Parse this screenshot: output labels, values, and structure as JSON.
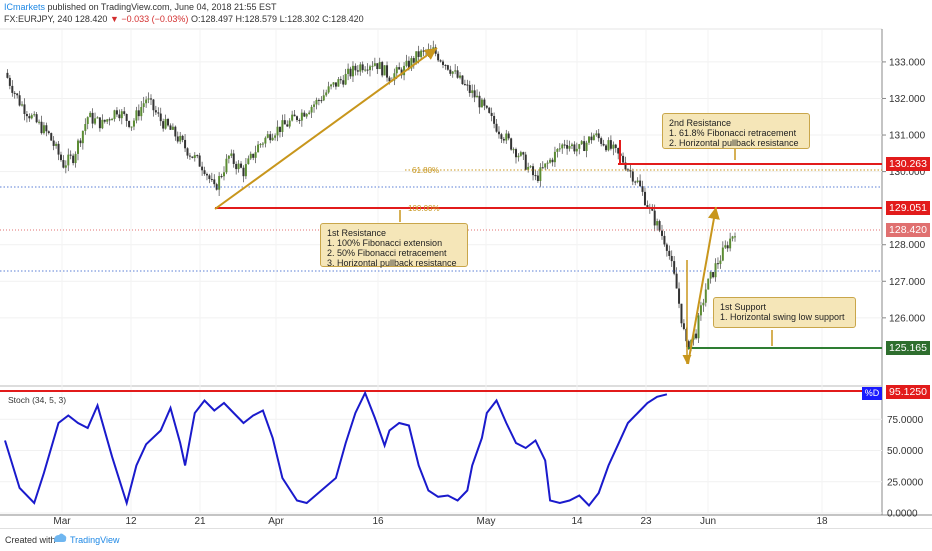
{
  "header": {
    "publisher": "ICmarkets",
    "published_text": "published on TradingView.com, June 04, 2018 21:55 EST",
    "symbol": "FX:EURJPY, 240",
    "change": "▼ −0.033 (−0.03%)",
    "ohlc_o": "O:128.497",
    "ohlc_h": "H:128.579",
    "ohlc_l": "L:128.302",
    "ohlc_c": "C:128.420"
  },
  "footer": {
    "created_with": "Created with",
    "brand": "TradingView"
  },
  "colors": {
    "up": "#26a69a",
    "down": "#ef5350",
    "candle_body": "#5b8c33",
    "resistance": "#e21b1b",
    "support": "#2e7d32",
    "arrow": "#c8961c",
    "stoch": "#1a1acc",
    "dotted_blue": "#5b7fd6"
  },
  "price_levels": {
    "r2": "130.263",
    "r1": "129.051",
    "current": "128.420",
    "s1": "125.165",
    "stoch_level": "95.1250",
    "stoch_pctd": "%D"
  },
  "fib_labels": {
    "fib618": "61.80%",
    "fib100": "100.00%"
  },
  "callouts": {
    "r2": [
      "2nd Resistance",
      "1. 61.8% Fibonacci retracement",
      "2. Horizontal pullback resistance"
    ],
    "r1": [
      "1st Resistance",
      "1. 100% Fibonacci extension",
      "2. 50% Fibonacci retracement",
      "3. Horizontal pullback resistance"
    ],
    "s1": [
      "1st Support",
      "1. Horizontal swing low support"
    ]
  },
  "stoch_label": "Stoch (34, 5, 3)",
  "chart_data": {
    "type": "candlestick",
    "symbol": "FX:EURJPY",
    "timeframe": "240",
    "price_axis": {
      "ylim": [
        124.3,
        133.9
      ],
      "ticks": [
        "133.000",
        "132.000",
        "131.000",
        "130.000",
        "128.000",
        "127.000",
        "126.000"
      ]
    },
    "stoch_axis": {
      "ylim": [
        0,
        100
      ],
      "ticks": [
        "75.0000",
        "50.0000",
        "25.0000",
        "0.0000"
      ]
    },
    "x_ticks": [
      "Mar",
      "12",
      "21",
      "Apr",
      "16",
      "May",
      "14",
      "23",
      "Jun",
      "18"
    ],
    "horizontal_levels": [
      {
        "name": "2nd Resistance",
        "value": 130.263
      },
      {
        "name": "1st Resistance",
        "value": 129.051
      },
      {
        "name": "1st Support",
        "value": 125.165
      },
      {
        "name": "current",
        "value": 128.42
      }
    ],
    "fib_levels": [
      {
        "label": "61.80%",
        "value": 130.1
      },
      {
        "label": "100.00%",
        "value": 129.051
      }
    ],
    "price_path": [
      [
        0,
        132.7
      ],
      [
        3,
        131.9
      ],
      [
        6,
        131.4
      ],
      [
        9,
        131.0
      ],
      [
        12,
        130.2
      ],
      [
        14,
        130.4
      ],
      [
        17,
        131.5
      ],
      [
        20,
        131.3
      ],
      [
        23,
        131.7
      ],
      [
        26,
        131.3
      ],
      [
        29,
        132.0
      ],
      [
        32,
        131.4
      ],
      [
        35,
        131.0
      ],
      [
        38,
        130.5
      ],
      [
        41,
        130.1
      ],
      [
        43,
        129.5
      ],
      [
        46,
        130.4
      ],
      [
        49,
        130.0
      ],
      [
        52,
        130.7
      ],
      [
        55,
        131.1
      ],
      [
        58,
        131.3
      ],
      [
        61,
        131.6
      ],
      [
        64,
        131.9
      ],
      [
        67,
        132.3
      ],
      [
        70,
        132.6
      ],
      [
        73,
        132.9
      ],
      [
        76,
        133.0
      ],
      [
        79,
        132.6
      ],
      [
        82,
        132.8
      ],
      [
        85,
        133.2
      ],
      [
        88,
        133.3
      ],
      [
        91,
        132.9
      ],
      [
        94,
        132.4
      ],
      [
        97,
        132.0
      ],
      [
        100,
        131.4
      ],
      [
        103,
        130.9
      ],
      [
        106,
        130.4
      ],
      [
        109,
        129.8
      ],
      [
        112,
        130.3
      ],
      [
        115,
        130.8
      ],
      [
        118,
        130.6
      ],
      [
        121,
        131.0
      ],
      [
        124,
        130.7
      ],
      [
        127,
        130.3
      ],
      [
        130,
        129.7
      ],
      [
        133,
        128.8
      ],
      [
        136,
        128.0
      ],
      [
        138,
        126.8
      ],
      [
        140,
        125.2
      ],
      [
        142,
        125.6
      ],
      [
        144,
        126.8
      ],
      [
        146,
        127.4
      ],
      [
        148,
        127.9
      ],
      [
        150,
        128.4
      ]
    ],
    "stoch": [
      [
        0,
        58
      ],
      [
        3,
        20
      ],
      [
        6,
        8
      ],
      [
        8,
        32
      ],
      [
        11,
        72
      ],
      [
        13,
        78
      ],
      [
        15,
        72
      ],
      [
        17,
        68
      ],
      [
        19,
        86
      ],
      [
        22,
        45
      ],
      [
        25,
        8
      ],
      [
        27,
        38
      ],
      [
        29,
        55
      ],
      [
        32,
        66
      ],
      [
        34,
        84
      ],
      [
        36,
        56
      ],
      [
        37,
        38
      ],
      [
        39,
        80
      ],
      [
        41,
        90
      ],
      [
        43,
        82
      ],
      [
        45,
        88
      ],
      [
        47,
        80
      ],
      [
        49,
        72
      ],
      [
        51,
        78
      ],
      [
        53,
        82
      ],
      [
        55,
        60
      ],
      [
        57,
        28
      ],
      [
        60,
        10
      ],
      [
        62,
        8
      ],
      [
        65,
        18
      ],
      [
        68,
        28
      ],
      [
        70,
        56
      ],
      [
        72,
        80
      ],
      [
        74,
        96
      ],
      [
        76,
        76
      ],
      [
        78,
        54
      ],
      [
        79,
        66
      ],
      [
        81,
        72
      ],
      [
        83,
        70
      ],
      [
        85,
        38
      ],
      [
        87,
        18
      ],
      [
        89,
        13
      ],
      [
        91,
        14
      ],
      [
        93,
        10
      ],
      [
        95,
        18
      ],
      [
        96,
        38
      ],
      [
        98,
        60
      ],
      [
        99,
        80
      ],
      [
        101,
        90
      ],
      [
        103,
        72
      ],
      [
        105,
        56
      ],
      [
        107,
        52
      ],
      [
        109,
        58
      ],
      [
        111,
        42
      ],
      [
        112,
        10
      ],
      [
        114,
        8
      ],
      [
        116,
        10
      ],
      [
        118,
        14
      ],
      [
        120,
        6
      ],
      [
        122,
        16
      ],
      [
        124,
        38
      ],
      [
        126,
        55
      ],
      [
        128,
        72
      ],
      [
        130,
        80
      ],
      [
        132,
        88
      ],
      [
        134,
        93
      ],
      [
        136,
        95
      ]
    ]
  }
}
